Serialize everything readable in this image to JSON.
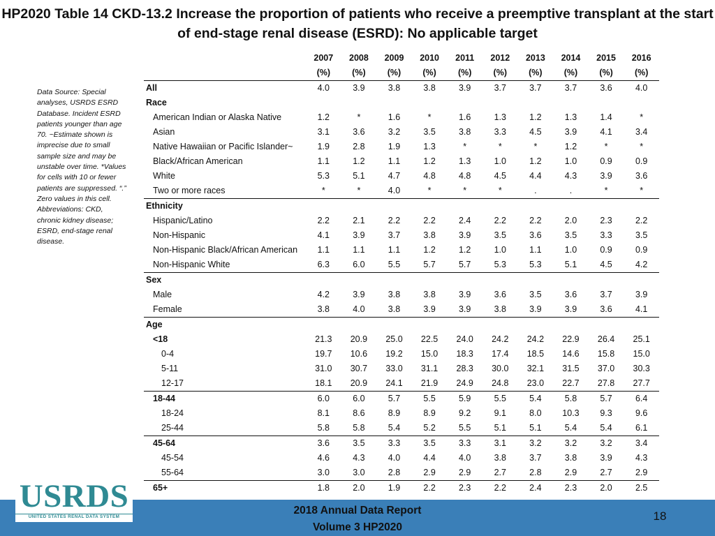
{
  "title": "HP2020 Table 14 CKD-13.2 Increase the proportion of patients who receive a preemptive transplant at the start of end-stage renal disease (ESRD): No applicable target",
  "sidenote": "Data Source: Special analyses, USRDS ESRD Database. Incident ESRD patients younger than age 70. ~Estimate shown is imprecise due to small sample size and may be unstable over time. *Values for cells with 10 or fewer patients are suppressed. “.” Zero values in this cell. Abbreviations: CKD, chronic kidney disease; ESRD, end-stage renal disease.",
  "table": {
    "years": [
      "2007",
      "2008",
      "2009",
      "2010",
      "2011",
      "2012",
      "2013",
      "2014",
      "2015",
      "2016"
    ],
    "unit": "(%)",
    "rows": [
      {
        "label": "All",
        "level": 0,
        "values": [
          "4.0",
          "3.9",
          "3.8",
          "3.8",
          "3.9",
          "3.7",
          "3.7",
          "3.7",
          "3.6",
          "4.0"
        ],
        "line": false
      },
      {
        "label": "Race",
        "level": 0,
        "values": [],
        "line": false
      },
      {
        "label": "American Indian or Alaska Native",
        "level": 1,
        "values": [
          "1.2",
          "*",
          "1.6",
          "*",
          "1.6",
          "1.3",
          "1.2",
          "1.3",
          "1.4",
          "*"
        ],
        "line": false
      },
      {
        "label": "Asian",
        "level": 1,
        "values": [
          "3.1",
          "3.6",
          "3.2",
          "3.5",
          "3.8",
          "3.3",
          "4.5",
          "3.9",
          "4.1",
          "3.4"
        ],
        "line": false
      },
      {
        "label": "Native Hawaiian or Pacific Islander~",
        "level": 1,
        "values": [
          "1.9",
          "2.8",
          "1.9",
          "1.3",
          "*",
          "*",
          "*",
          "1.2",
          "*",
          "*"
        ],
        "line": false
      },
      {
        "label": "Black/African American",
        "level": 1,
        "values": [
          "1.1",
          "1.2",
          "1.1",
          "1.2",
          "1.3",
          "1.0",
          "1.2",
          "1.0",
          "0.9",
          "0.9"
        ],
        "line": false
      },
      {
        "label": "White",
        "level": 1,
        "values": [
          "5.3",
          "5.1",
          "4.7",
          "4.8",
          "4.8",
          "4.5",
          "4.4",
          "4.3",
          "3.9",
          "3.6"
        ],
        "line": false
      },
      {
        "label": "Two or more races",
        "level": 1,
        "values": [
          "*",
          "*",
          "4.0",
          "*",
          "*",
          "*",
          ".",
          ".",
          "*",
          "*"
        ],
        "line": false
      },
      {
        "label": "Ethnicity",
        "level": 0,
        "values": [],
        "line": true
      },
      {
        "label": "Hispanic/Latino",
        "level": 1,
        "values": [
          "2.2",
          "2.1",
          "2.2",
          "2.2",
          "2.4",
          "2.2",
          "2.2",
          "2.0",
          "2.3",
          "2.2"
        ],
        "line": false
      },
      {
        "label": "Non-Hispanic",
        "level": 1,
        "values": [
          "4.1",
          "3.9",
          "3.7",
          "3.8",
          "3.9",
          "3.5",
          "3.6",
          "3.5",
          "3.3",
          "3.5"
        ],
        "line": false
      },
      {
        "label": "Non-Hispanic Black/African American",
        "level": 1,
        "values": [
          "1.1",
          "1.1",
          "1.1",
          "1.2",
          "1.2",
          "1.0",
          "1.1",
          "1.0",
          "0.9",
          "0.9"
        ],
        "line": false
      },
      {
        "label": "Non-Hispanic White",
        "level": 1,
        "values": [
          "6.3",
          "6.0",
          "5.5",
          "5.7",
          "5.7",
          "5.3",
          "5.3",
          "5.1",
          "4.5",
          "4.2"
        ],
        "line": false
      },
      {
        "label": "Sex",
        "level": 0,
        "values": [],
        "line": true
      },
      {
        "label": "Male",
        "level": 1,
        "values": [
          "4.2",
          "3.9",
          "3.8",
          "3.8",
          "3.9",
          "3.6",
          "3.5",
          "3.6",
          "3.7",
          "3.9"
        ],
        "line": false
      },
      {
        "label": "Female",
        "level": 1,
        "values": [
          "3.8",
          "4.0",
          "3.8",
          "3.9",
          "3.9",
          "3.8",
          "3.9",
          "3.9",
          "3.6",
          "4.1"
        ],
        "line": false
      },
      {
        "label": "Age",
        "level": 0,
        "values": [],
        "line": true
      },
      {
        "label": "<18",
        "level": 1,
        "bold": true,
        "values": [
          "21.3",
          "20.9",
          "25.0",
          "22.5",
          "24.0",
          "24.2",
          "24.2",
          "22.9",
          "26.4",
          "25.1"
        ],
        "line": false
      },
      {
        "label": "0-4",
        "level": 2,
        "values": [
          "19.7",
          "10.6",
          "19.2",
          "15.0",
          "18.3",
          "17.4",
          "18.5",
          "14.6",
          "15.8",
          "15.0"
        ],
        "line": false
      },
      {
        "label": "5-11",
        "level": 2,
        "values": [
          "31.0",
          "30.7",
          "33.0",
          "31.1",
          "28.3",
          "30.0",
          "32.1",
          "31.5",
          "37.0",
          "30.3"
        ],
        "line": false
      },
      {
        "label": "12-17",
        "level": 2,
        "values": [
          "18.1",
          "20.9",
          "24.1",
          "21.9",
          "24.9",
          "24.8",
          "23.0",
          "22.7",
          "27.8",
          "27.7"
        ],
        "line": false
      },
      {
        "label": "18-44",
        "level": 1,
        "bold": true,
        "values": [
          "6.0",
          "6.0",
          "5.7",
          "5.5",
          "5.9",
          "5.5",
          "5.4",
          "5.8",
          "5.7",
          "6.4"
        ],
        "line": true
      },
      {
        "label": "18-24",
        "level": 2,
        "values": [
          "8.1",
          "8.6",
          "8.9",
          "8.9",
          "9.2",
          "9.1",
          "8.0",
          "10.3",
          "9.3",
          "9.6"
        ],
        "line": false
      },
      {
        "label": "25-44",
        "level": 2,
        "values": [
          "5.8",
          "5.8",
          "5.4",
          "5.2",
          "5.5",
          "5.1",
          "5.1",
          "5.4",
          "5.4",
          "6.1"
        ],
        "line": false
      },
      {
        "label": "45-64",
        "level": 1,
        "bold": true,
        "values": [
          "3.6",
          "3.5",
          "3.3",
          "3.5",
          "3.3",
          "3.1",
          "3.2",
          "3.2",
          "3.2",
          "3.4"
        ],
        "line": true
      },
      {
        "label": "45-54",
        "level": 2,
        "values": [
          "4.6",
          "4.3",
          "4.0",
          "4.4",
          "4.0",
          "3.8",
          "3.7",
          "3.8",
          "3.9",
          "4.3"
        ],
        "line": false
      },
      {
        "label": "55-64",
        "level": 2,
        "values": [
          "3.0",
          "3.0",
          "2.8",
          "2.9",
          "2.9",
          "2.7",
          "2.8",
          "2.9",
          "2.7",
          "2.9"
        ],
        "line": false
      },
      {
        "label": "65+",
        "level": 1,
        "bold": true,
        "values": [
          "1.8",
          "2.0",
          "1.9",
          "2.2",
          "2.3",
          "2.2",
          "2.4",
          "2.3",
          "2.0",
          "2.5"
        ],
        "line": true
      }
    ]
  },
  "logo": {
    "text": "USRDS",
    "subtext": "UNITED STATES RENAL DATA SYSTEM"
  },
  "footer": {
    "line1": "2018 Annual Data Report",
    "line2": "Volume 3 HP2020",
    "page": "18"
  }
}
